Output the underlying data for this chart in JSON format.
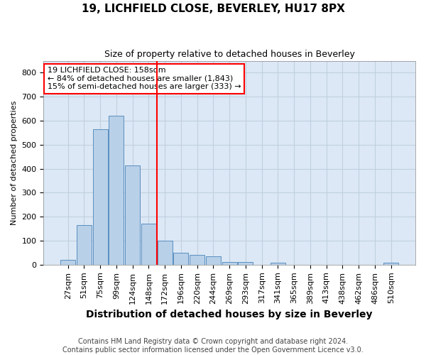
{
  "title1": "19, LICHFIELD CLOSE, BEVERLEY, HU17 8PX",
  "title2": "Size of property relative to detached houses in Beverley",
  "xlabel": "Distribution of detached houses by size in Beverley",
  "ylabel": "Number of detached properties",
  "footer1": "Contains HM Land Registry data © Crown copyright and database right 2024.",
  "footer2": "Contains public sector information licensed under the Open Government Licence v3.0.",
  "categories": [
    "27sqm",
    "51sqm",
    "75sqm",
    "99sqm",
    "124sqm",
    "148sqm",
    "172sqm",
    "196sqm",
    "220sqm",
    "244sqm",
    "269sqm",
    "293sqm",
    "317sqm",
    "341sqm",
    "365sqm",
    "389sqm",
    "413sqm",
    "438sqm",
    "462sqm",
    "486sqm",
    "510sqm"
  ],
  "values": [
    20,
    165,
    565,
    620,
    413,
    170,
    100,
    50,
    40,
    35,
    12,
    10,
    0,
    7,
    0,
    0,
    0,
    0,
    0,
    0,
    7
  ],
  "bar_color": "#b8d0e8",
  "bar_edge_color": "#5a8fc0",
  "grid_color": "#c0d0e0",
  "background_color": "#ffffff",
  "plot_bg_color": "#dce8f5",
  "vline_x": 5.5,
  "vline_color": "red",
  "annotation_line1": "19 LICHFIELD CLOSE: 158sqm",
  "annotation_line2": "← 84% of detached houses are smaller (1,843)",
  "annotation_line3": "15% of semi-detached houses are larger (333) →",
  "annotation_box_color": "white",
  "annotation_box_edge": "red",
  "ylim": [
    0,
    850
  ],
  "yticks": [
    0,
    100,
    200,
    300,
    400,
    500,
    600,
    700,
    800
  ],
  "title1_fontsize": 11,
  "title2_fontsize": 9,
  "xlabel_fontsize": 10,
  "ylabel_fontsize": 8,
  "tick_fontsize": 8,
  "annot_fontsize": 8,
  "footer_fontsize": 7
}
